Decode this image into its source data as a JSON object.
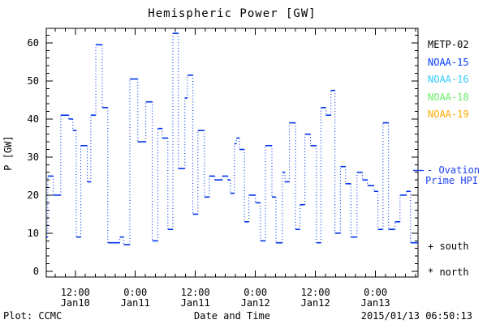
{
  "title": "Hemispheric Power [GW]",
  "axes": {
    "ylabel": "P [GW]",
    "xlabel": "Date and Time"
  },
  "footer": {
    "left": "Plot: CCMC",
    "right": "2015/01/13 06:50:13"
  },
  "legend": {
    "satellites": [
      {
        "label": "METP-02",
        "color": "#000000"
      },
      {
        "label": "NOAA-15",
        "color": "#0038ff"
      },
      {
        "label": "NOAA-16",
        "color": "#33ccff"
      },
      {
        "label": "NOAA-18",
        "color": "#66ee66"
      },
      {
        "label": "NOAA-19",
        "color": "#ffaa00"
      }
    ],
    "line_label_1": "- Ovation",
    "line_label_2": "Prime HPI",
    "line_color": "#2143ee",
    "south_marker": "+ south",
    "north_marker": "* north"
  },
  "chart_data": {
    "type": "line",
    "subtype": "histogram-step, dotted connectors",
    "title": "Hemispheric Power [GW]",
    "xlabel": "Date and Time",
    "ylabel": "P [GW]",
    "x_unit": "hours since 2015-01-10 00:00 UT",
    "xlim": [
      6.2,
      80.5
    ],
    "ylim": [
      -1.5,
      63.8
    ],
    "grid": false,
    "line_color": "#0033ee",
    "x_major_ticks": [
      {
        "hour": 12,
        "line1": "12:00",
        "line2": "Jan10"
      },
      {
        "hour": 24,
        "line1": "0:00",
        "line2": "Jan11"
      },
      {
        "hour": 36,
        "line1": "12:00",
        "line2": "Jan11"
      },
      {
        "hour": 48,
        "line1": "0:00",
        "line2": "Jan12"
      },
      {
        "hour": 60,
        "line1": "12:00",
        "line2": "Jan12"
      },
      {
        "hour": 72,
        "line1": "0:00",
        "line2": "Jan13"
      }
    ],
    "x_minor_step_hours": 2,
    "y_major_ticks": [
      0,
      10,
      20,
      30,
      40,
      50,
      60
    ],
    "y_minor_step": 2,
    "series_label": "Ovation Prime HPI",
    "steps_format": [
      "t_start_hour",
      "t_end_hour",
      "power_gw"
    ],
    "steps": [
      [
        6.2,
        6.5,
        9
      ],
      [
        6.5,
        7.6,
        25
      ],
      [
        7.6,
        9.1,
        20
      ],
      [
        9.1,
        10.7,
        41
      ],
      [
        10.7,
        11.5,
        40
      ],
      [
        11.5,
        12.2,
        37
      ],
      [
        12.2,
        13.1,
        9
      ],
      [
        13.1,
        14.4,
        33
      ],
      [
        14.4,
        15.1,
        23.5
      ],
      [
        15.1,
        16.1,
        41
      ],
      [
        16.1,
        17.4,
        59.5
      ],
      [
        17.4,
        18.5,
        43
      ],
      [
        18.5,
        20.9,
        7.5
      ],
      [
        20.9,
        21.7,
        9
      ],
      [
        21.7,
        22.9,
        7
      ],
      [
        22.9,
        24.5,
        50.5
      ],
      [
        24.5,
        26.1,
        34
      ],
      [
        26.1,
        27.4,
        44.5
      ],
      [
        27.4,
        28.5,
        8
      ],
      [
        28.5,
        29.4,
        37.5
      ],
      [
        29.4,
        30.5,
        35
      ],
      [
        30.5,
        31.5,
        11
      ],
      [
        31.5,
        32.6,
        62.5
      ],
      [
        32.6,
        33.9,
        27
      ],
      [
        33.9,
        34.4,
        45.5
      ],
      [
        34.4,
        35.5,
        51.5
      ],
      [
        35.5,
        36.5,
        15
      ],
      [
        36.5,
        37.8,
        37
      ],
      [
        37.8,
        38.8,
        19.5
      ],
      [
        38.8,
        39.9,
        25
      ],
      [
        39.9,
        41.4,
        24
      ],
      [
        41.4,
        42.5,
        25
      ],
      [
        42.5,
        43.0,
        24
      ],
      [
        43.0,
        43.8,
        20.5
      ],
      [
        43.8,
        44.2,
        33.5
      ],
      [
        44.2,
        44.8,
        35
      ],
      [
        44.8,
        45.8,
        32
      ],
      [
        45.8,
        46.7,
        13
      ],
      [
        46.7,
        48.0,
        20
      ],
      [
        48.0,
        49.0,
        18
      ],
      [
        49.0,
        50.0,
        8
      ],
      [
        50.0,
        51.3,
        33
      ],
      [
        51.3,
        52.1,
        19.5
      ],
      [
        52.1,
        53.4,
        7.5
      ],
      [
        53.4,
        53.9,
        26
      ],
      [
        53.9,
        54.8,
        23.5
      ],
      [
        54.8,
        56.0,
        39
      ],
      [
        56.0,
        56.9,
        11
      ],
      [
        56.9,
        57.9,
        17.5
      ],
      [
        57.9,
        59.0,
        36
      ],
      [
        59.0,
        60.2,
        33
      ],
      [
        60.2,
        61.1,
        7.5
      ],
      [
        61.1,
        62.1,
        43
      ],
      [
        62.1,
        63.1,
        41
      ],
      [
        63.1,
        63.9,
        47.5
      ],
      [
        63.9,
        65.0,
        10
      ],
      [
        65.0,
        66.0,
        27.5
      ],
      [
        66.0,
        67.1,
        23
      ],
      [
        67.1,
        68.3,
        9
      ],
      [
        68.3,
        69.4,
        26
      ],
      [
        69.4,
        70.4,
        24
      ],
      [
        70.4,
        71.7,
        22.5
      ],
      [
        71.7,
        72.5,
        21
      ],
      [
        72.5,
        73.5,
        11
      ],
      [
        73.5,
        74.6,
        39
      ],
      [
        74.6,
        75.9,
        11
      ],
      [
        75.9,
        76.9,
        13
      ],
      [
        76.9,
        78.2,
        20
      ],
      [
        78.2,
        79.0,
        21
      ],
      [
        79.0,
        80.5,
        7.5
      ]
    ]
  }
}
